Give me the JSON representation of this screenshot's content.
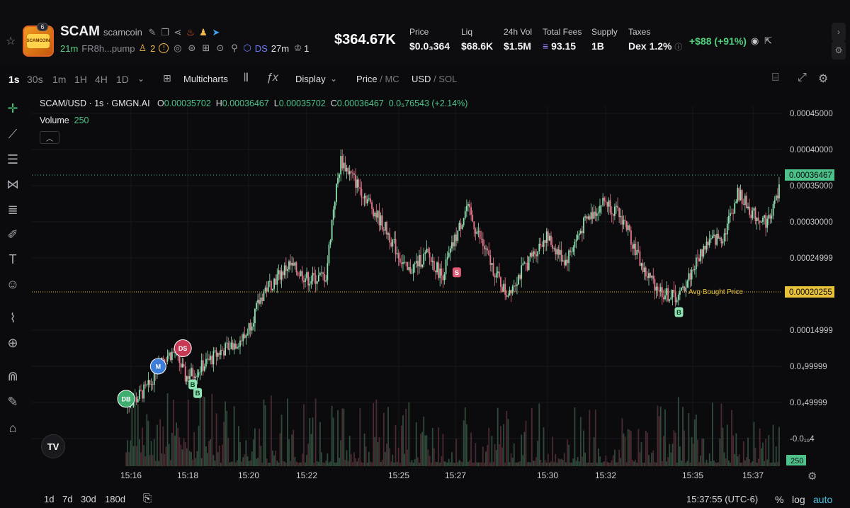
{
  "token": {
    "name": "SCAM",
    "ticker": "scamcoin",
    "logo_text": "SCAMCOIN",
    "logo_badge": "6",
    "age": "21m",
    "address": "FR8h...pump",
    "holders": "2",
    "dev_source": "DS",
    "dev_time": "27m",
    "dev_count": "1",
    "market_cap": "$364.67K",
    "change": "+$88 (+91%)"
  },
  "stats": [
    {
      "label": "Price",
      "value": "$0.0₃364"
    },
    {
      "label": "Liq",
      "value": "$68.6K"
    },
    {
      "label": "24h Vol",
      "value": "$1.5M"
    },
    {
      "label": "Total Fees",
      "value": "93.15"
    },
    {
      "label": "Supply",
      "value": "1B"
    },
    {
      "label": "Taxes",
      "value": "Dex 1.2%"
    }
  ],
  "toolbar": {
    "timeframes": [
      "1s",
      "30s",
      "1m",
      "1H",
      "4H",
      "1D"
    ],
    "active_timeframe": "1s",
    "multicharts": "Multicharts",
    "display": "Display",
    "price": "Price",
    "mc": "MC",
    "usd": "USD",
    "sol": "SOL"
  },
  "legend": {
    "symbol": "SCAM/USD · 1s · GMGN.AI",
    "o_label": "O",
    "o": "0.00035702",
    "h_label": "H",
    "h": "0.00036467",
    "l_label": "L",
    "l": "0.00035702",
    "c_label": "C",
    "c": "0.00036467",
    "delta": "0.0₅76543 (+2.14%)",
    "volume_label": "Volume",
    "volume": "250"
  },
  "chart_data": {
    "type": "candlestick",
    "y_axis_labels": [
      "0.00045000",
      "0.00040000",
      "0.00035000",
      "0.00030000",
      "0.00024999",
      "0.00014999",
      "0.0₄99999",
      "0.0₄49999",
      "-0.0₁₉4"
    ],
    "x_axis_labels": [
      "15:16",
      "15:18",
      "15:20",
      "15:22",
      "15:25",
      "15:27",
      "15:30",
      "15:32",
      "15:35",
      "15:37"
    ],
    "current_price_label": "0.00036467",
    "avg_bought_price_label": "0.00020255",
    "avg_bought_text": "Avg Bought Price",
    "volume_axis_label": "250",
    "ylim": [
      0.0,
      0.00045
    ],
    "markers": [
      {
        "label": "DB",
        "time": "15:15:50",
        "price": 5.5e-05
      },
      {
        "label": "M",
        "time": "15:16:55",
        "price": 0.0001
      },
      {
        "label": "DS",
        "time": "15:17:45",
        "price": 0.000125
      },
      {
        "label": "B",
        "time": "15:18:05",
        "price": 7.5e-05
      },
      {
        "label": "B",
        "time": "15:18:15",
        "price": 6.3e-05
      },
      {
        "label": "S",
        "time": "15:27:00",
        "price": 0.00023
      },
      {
        "label": "B",
        "time": "15:34:30",
        "price": 0.000175
      }
    ],
    "colors": {
      "up": "#8fe3b3",
      "down": "#e8798f",
      "current": "#4cc28a",
      "avg": "#e7c13a"
    }
  },
  "bottom": {
    "ranges": [
      "1d",
      "7d",
      "30d",
      "180d"
    ],
    "clock": "15:37:55 (UTC-6)",
    "pct": "%",
    "log": "log",
    "auto": "auto"
  }
}
